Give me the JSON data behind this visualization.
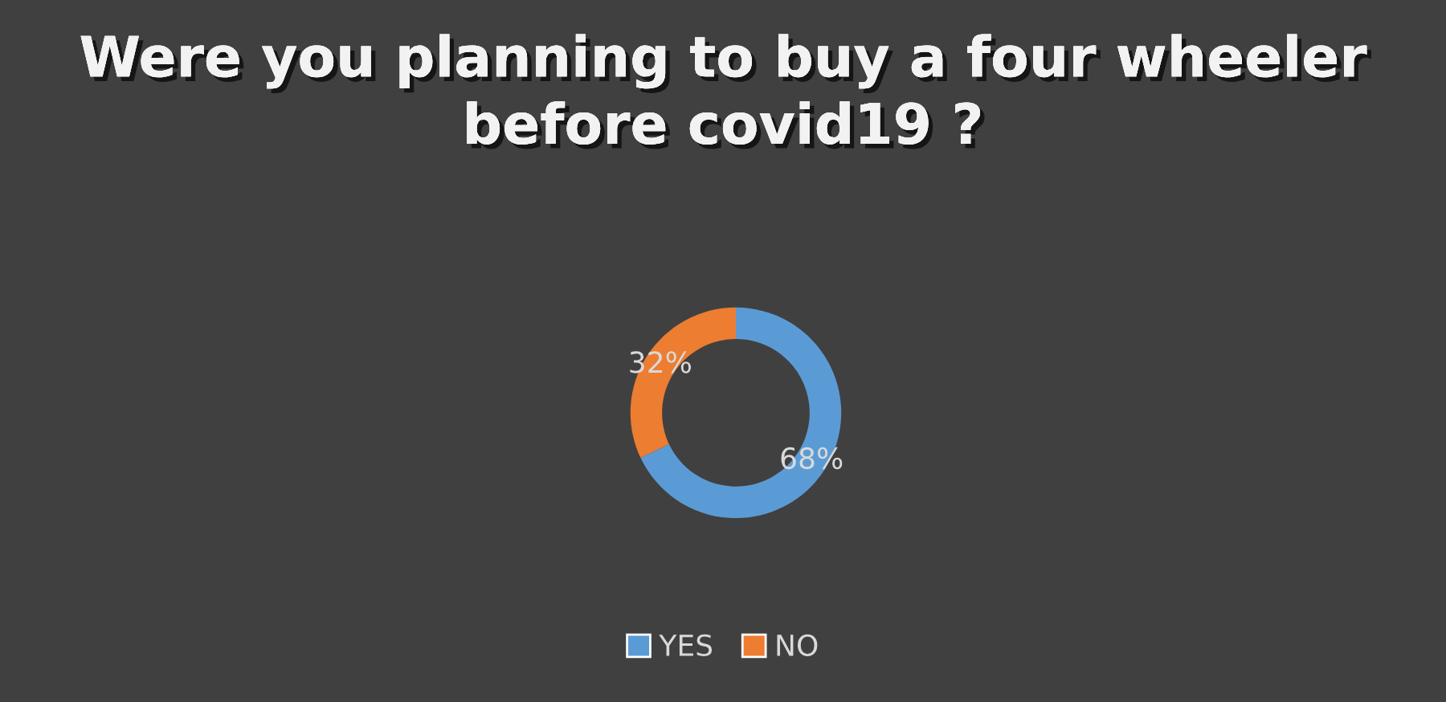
{
  "chart_data": {
    "type": "donut",
    "title": "Were you planning to buy a four wheeler before covid19 ?",
    "categories": [
      "YES",
      "NO"
    ],
    "values": [
      68,
      32
    ],
    "colors": [
      "#5b9bd5",
      "#ed7d31"
    ],
    "value_labels": [
      "68%",
      "32%"
    ],
    "legend": "bottom"
  }
}
